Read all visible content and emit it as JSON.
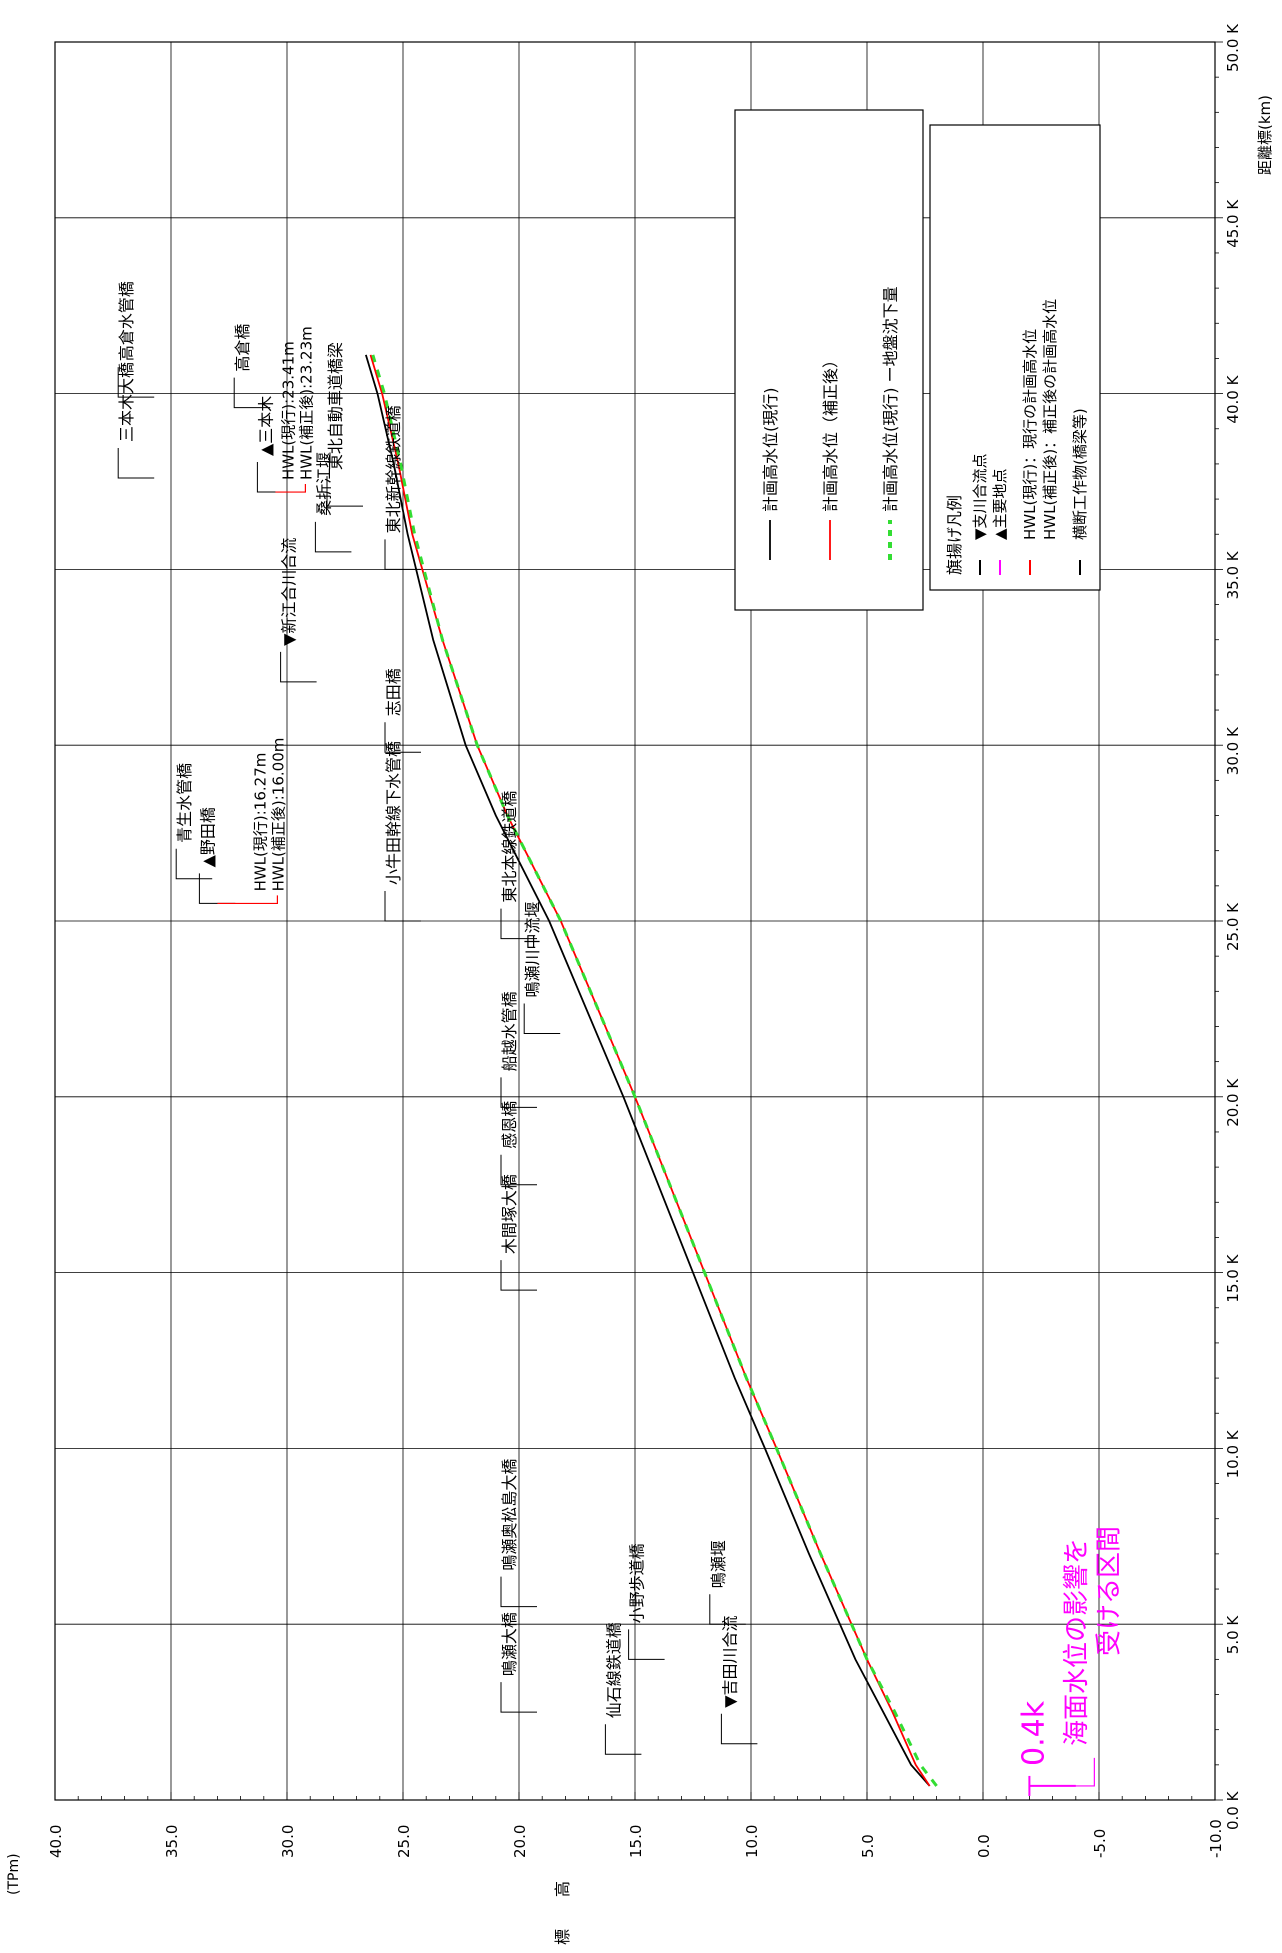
{
  "chart_data": {
    "type": "line",
    "xlabel": "距離標(km)",
    "ylabel": "標　　高",
    "y_unit": "(TPm)",
    "x_ticks": [
      "0.0 K",
      "5.0 K",
      "10.0 K",
      "15.0 K",
      "20.0 K",
      "25.0 K",
      "30.0 K",
      "35.0 K",
      "40.0 K",
      "45.0 K",
      "50.0 K"
    ],
    "y_ticks": [
      "40.0",
      "35.0",
      "30.0",
      "25.0",
      "20.0",
      "15.0",
      "10.0",
      "5.0",
      "0.0",
      "-5.0",
      "-10.0"
    ],
    "xlim": [
      0,
      50
    ],
    "ylim": [
      -10,
      40
    ],
    "grid": true,
    "series": [
      {
        "name": "計画高水位(現行)",
        "color": "#000000",
        "dash": "solid",
        "x": [
          0.4,
          1.0,
          2.5,
          4.0,
          7.0,
          10.0,
          12.0,
          15.0,
          20.0,
          25.0,
          28.0,
          30.0,
          33.0,
          36.0,
          38.0,
          40.0,
          41.1
        ],
        "y": [
          2.3,
          3.1,
          4.3,
          5.5,
          7.5,
          9.4,
          10.7,
          12.5,
          15.5,
          18.7,
          21.0,
          22.3,
          23.7,
          24.8,
          25.4,
          26.1,
          26.6
        ]
      },
      {
        "name": "計画高水位（補正後）",
        "color": "#ff0000",
        "dash": "solid",
        "x": [
          0.4,
          1.0,
          2.5,
          4.0,
          7.0,
          10.0,
          12.0,
          15.0,
          20.0,
          25.0,
          28.0,
          30.0,
          33.0,
          36.0,
          38.0,
          40.0,
          41.1
        ],
        "y": [
          2.3,
          2.9,
          3.9,
          5.0,
          7.0,
          8.9,
          10.2,
          12.0,
          15.0,
          18.2,
          20.5,
          21.8,
          23.3,
          24.6,
          25.2,
          25.9,
          26.4
        ]
      },
      {
        "name": "計画高水位(現行) ー地盤沈下量",
        "color": "#33dd33",
        "dash": "dashed",
        "x": [
          0.4,
          1.0,
          2.5,
          4.0,
          7.0,
          10.0,
          12.0,
          15.0,
          20.0,
          25.0,
          28.0,
          30.0,
          33.0,
          36.0,
          38.0,
          40.0,
          41.1
        ],
        "y": [
          2.0,
          2.7,
          3.8,
          5.0,
          7.0,
          8.9,
          10.2,
          12.0,
          15.0,
          18.2,
          20.5,
          21.8,
          23.3,
          24.5,
          25.1,
          25.8,
          26.3
        ]
      }
    ],
    "structures": [
      {
        "name": "鳴瀬大橋",
        "x": 2.5,
        "y": 20.0
      },
      {
        "name": "仙石線鉄道橋",
        "x": 1.3,
        "y": 15.5
      },
      {
        "name": "吉田川合流",
        "x": 1.6,
        "y": 10.5,
        "marker": "▼"
      },
      {
        "name": "鳴瀬奥松島大橋",
        "x": 5.5,
        "y": 20.0
      },
      {
        "name": "小野歩道橋",
        "x": 4.0,
        "y": 14.5
      },
      {
        "name": "鳴瀬堰",
        "x": 5.0,
        "y": 11.0
      },
      {
        "name": "木間塚大橋",
        "x": 14.5,
        "y": 20.0
      },
      {
        "name": "感恩橋",
        "x": 17.5,
        "y": 20.0
      },
      {
        "name": "船越水管橋",
        "x": 19.7,
        "y": 20.0
      },
      {
        "name": "鳴瀬川中流堰",
        "x": 21.8,
        "y": 19.0
      },
      {
        "name": "東北本線鉄道橋",
        "x": 24.5,
        "y": 20.0
      },
      {
        "name": "小牛田幹線下水管橋",
        "x": 25.0,
        "y": 25.0
      },
      {
        "name": "青生水管橋",
        "x": 26.2,
        "y": 34.0
      },
      {
        "name": "野田橋",
        "x": 25.5,
        "y": 33.0,
        "marker": "▲"
      },
      {
        "name": "志田橋",
        "x": 29.8,
        "y": 25.0
      },
      {
        "name": "新江合川合流",
        "x": 31.8,
        "y": 29.5,
        "marker": "▼"
      },
      {
        "name": "東北新幹線鉄道橋",
        "x": 35.0,
        "y": 25.0
      },
      {
        "name": "桑折江堰",
        "x": 35.5,
        "y": 28.0
      },
      {
        "name": "三本木",
        "x": 37.2,
        "y": 30.5,
        "marker": "▲"
      },
      {
        "name": "三本木大橋",
        "x": 37.6,
        "y": 36.5
      },
      {
        "name": "高倉水管橋",
        "x": 39.9,
        "y": 36.5
      },
      {
        "name": "高倉橋",
        "x": 39.6,
        "y": 31.5
      },
      {
        "name": "東北自動車道橋梁",
        "x": 36.8,
        "y": 27.5
      }
    ]
  },
  "labels": {
    "y_unit": "(TPm)",
    "x_axis_label": "距離標(km)",
    "y_axis_label": "標　　高",
    "hwl_noda_current": "HWL(現行):16.27m",
    "hwl_noda_corrected": "HWL(補正後):16.00m",
    "hwl_sanbongi_current": "HWL(現行):23.41m",
    "hwl_sanbongi_corrected": "HWL(補正後):23.23m",
    "sea_level_note_line1": "海面水位の影響を",
    "sea_level_note_line2": "受ける区間",
    "sea_level_km": "0.4k"
  },
  "legend1": {
    "items": [
      "計画高水位(現行)",
      "計画高水位（補正後）",
      "計画高水位(現行) ー地盤沈下量"
    ]
  },
  "legend2": {
    "title": "旗揚げ凡例",
    "items": [
      "▼支川合流点",
      "▲主要地点",
      "HWL(現行)：現行の計画高水位",
      "HWL(補正後)：補正後の計画高水位",
      "横断工作物(橋梁等)"
    ],
    "colors": [
      "#000000",
      "#ff00ff",
      "#ff0000",
      "#000000"
    ]
  },
  "colors": {
    "current": "#000000",
    "corrected": "#ff0000",
    "subsidence": "#33dd33",
    "annotation": "#ff00ff"
  }
}
